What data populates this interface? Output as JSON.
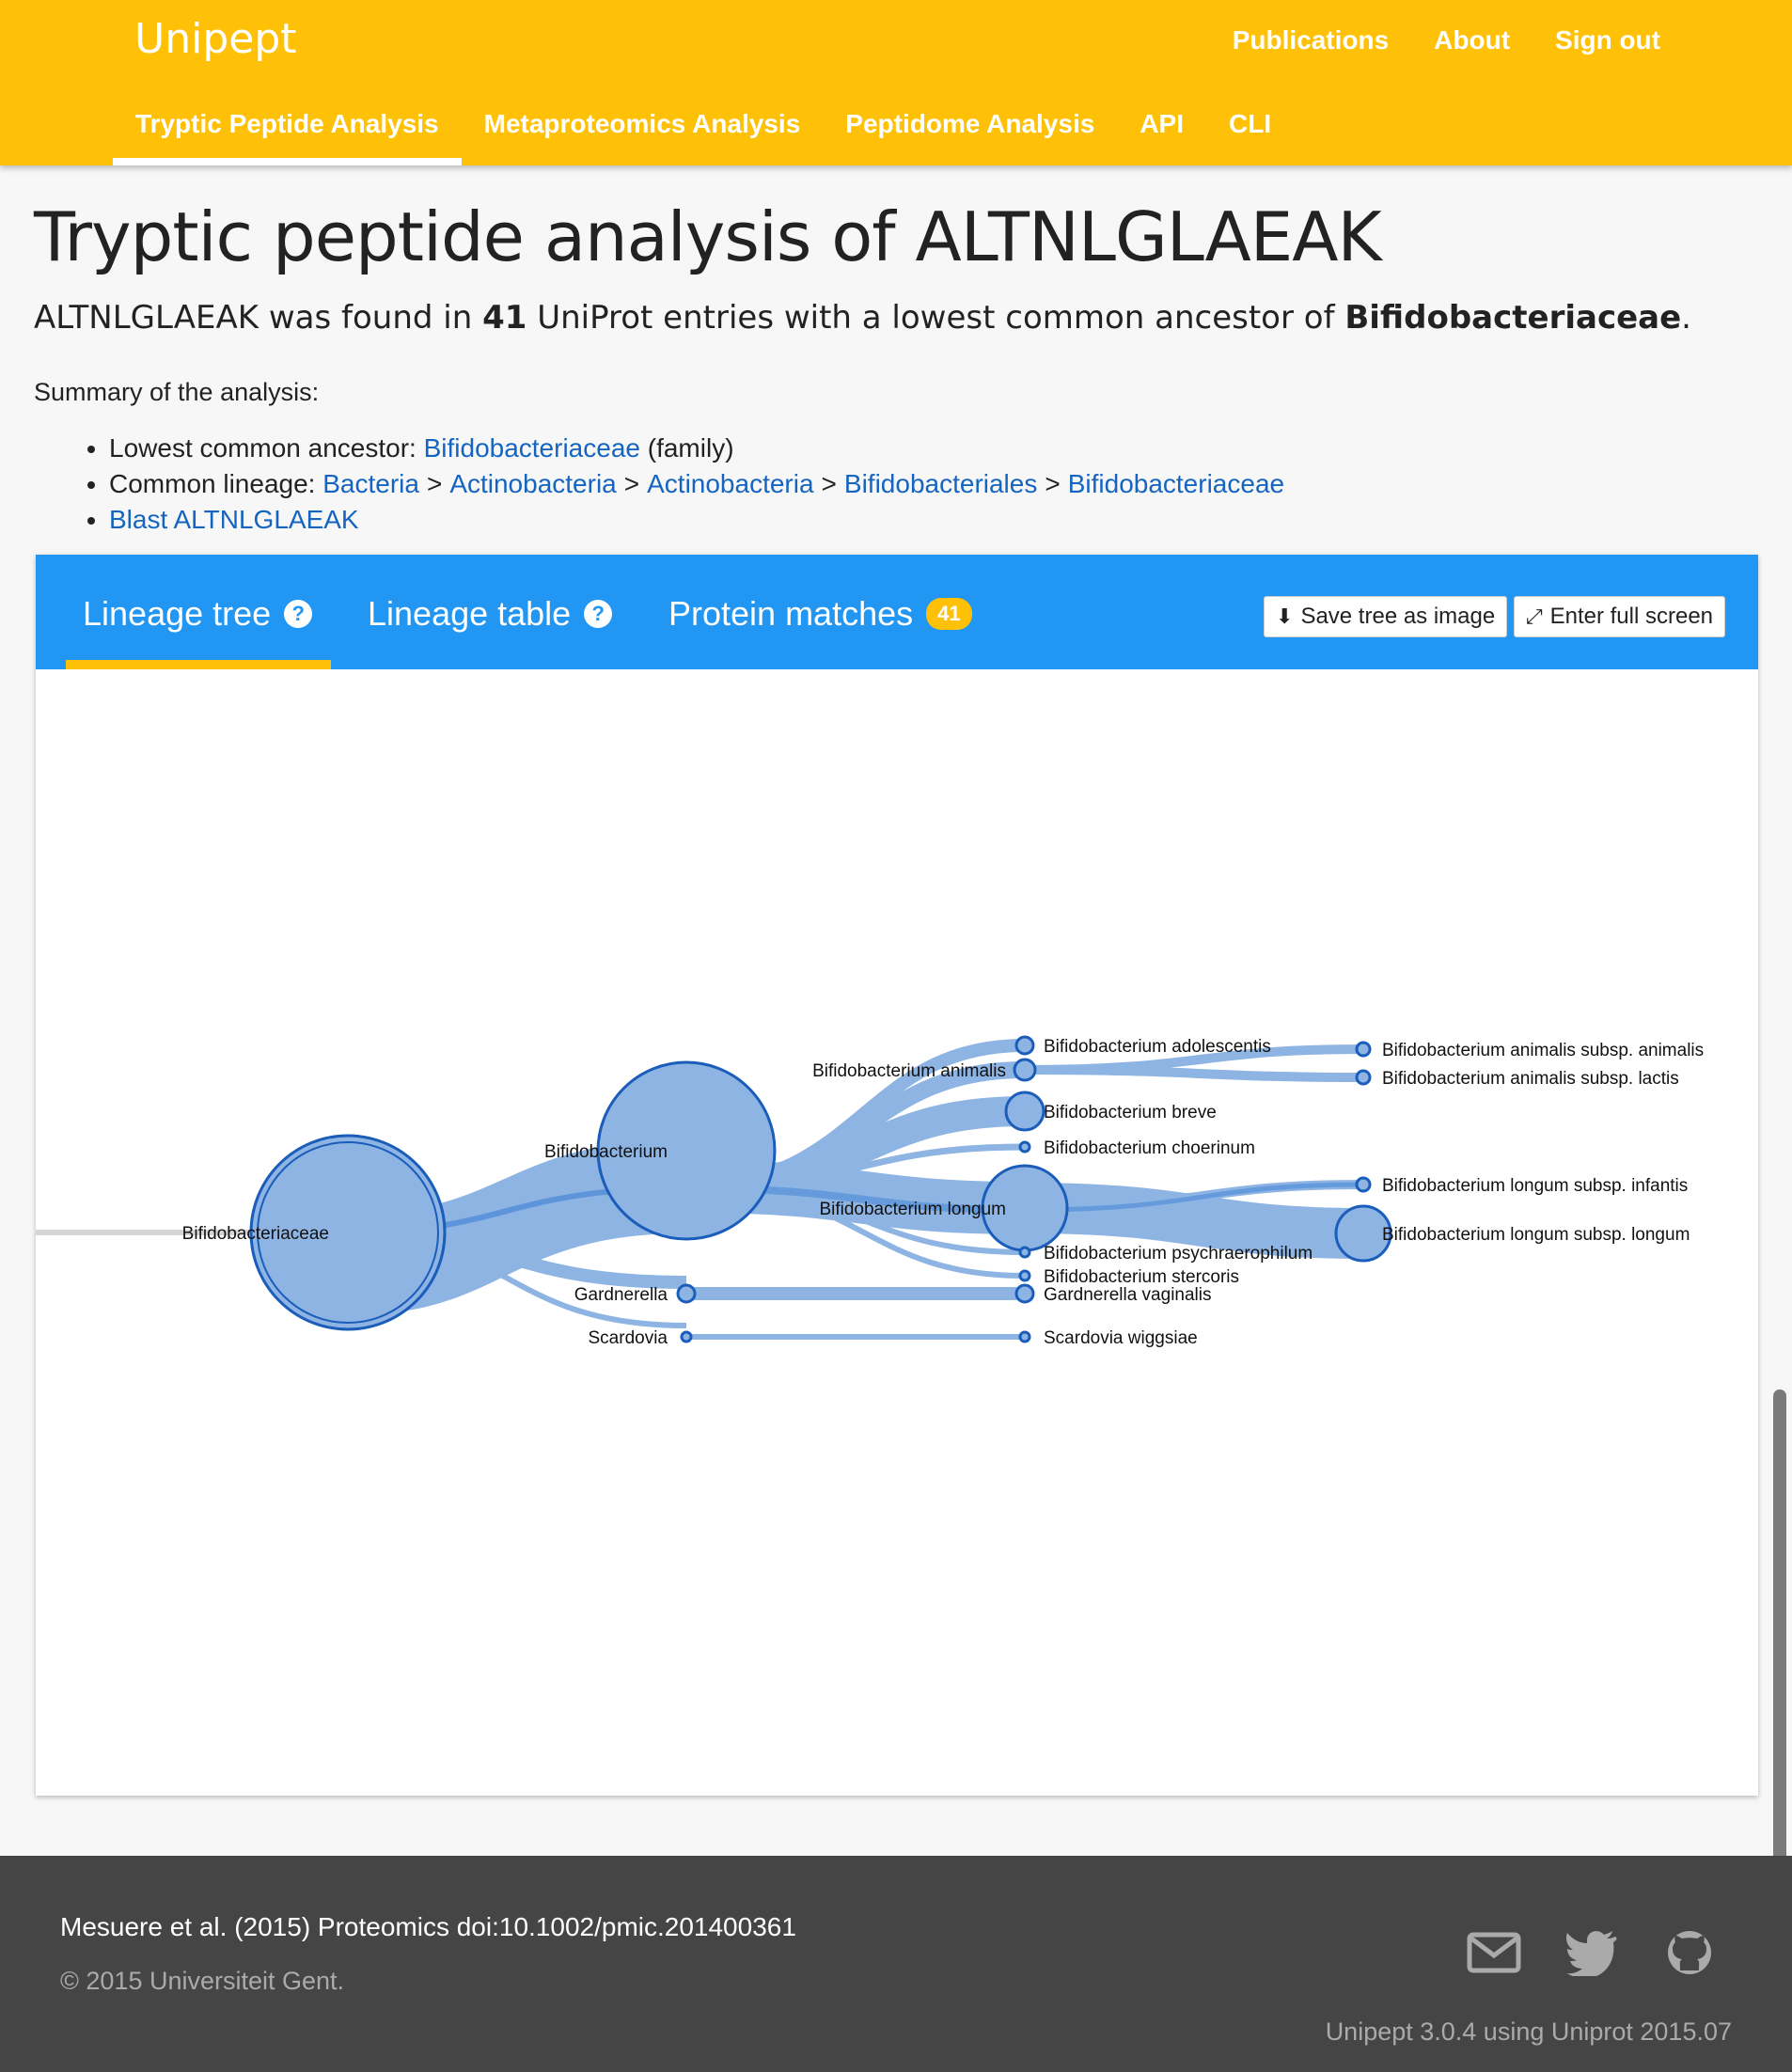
{
  "header": {
    "brand": "Unipept",
    "top_links": [
      "Publications",
      "About",
      "Sign out"
    ],
    "tabs": [
      "Tryptic Peptide Analysis",
      "Metaproteomics Analysis",
      "Peptidome Analysis",
      "API",
      "CLI"
    ],
    "active_tab": "Tryptic Peptide Analysis",
    "color": "#ffc107"
  },
  "page": {
    "title": "Tryptic peptide analysis of ALTNLGLAEAK",
    "intro": {
      "peptide": "ALTNLGLAEAK",
      "found_in": " was found in ",
      "count": "41",
      "middle": " UniProt entries with a lowest common ancestor of ",
      "lca": "Bifidobacteriaceae",
      "end": "."
    },
    "summary_label": "Summary of the analysis:",
    "summary": {
      "lca_label": "Lowest common ancestor: ",
      "lca_link": "Bifidobacteriaceae",
      "lca_rank": " (family)",
      "lineage_label": "Common lineage: ",
      "lineage": [
        "Bacteria",
        "Actinobacteria",
        "Actinobacteria",
        "Bifidobacteriales",
        "Bifidobacteriaceae"
      ],
      "lineage_separator": ">",
      "blast_link": "Blast ALTNLGLAEAK"
    }
  },
  "card": {
    "color": "#2196f3",
    "tabs": {
      "lineage_tree": "Lineage tree",
      "lineage_table": "Lineage table",
      "protein_matches": "Protein matches",
      "protein_count": "41"
    },
    "buttons": {
      "save_image": "Save tree as image",
      "full_screen": "Enter full screen"
    }
  },
  "tree": {
    "root": "Bifidobacteriaceae",
    "genera": [
      "Bifidobacterium",
      "Gardnerella",
      "Scardovia"
    ],
    "species": [
      "Bifidobacterium adolescentis",
      "Bifidobacterium animalis",
      "Bifidobacterium breve",
      "Bifidobacterium choerinum",
      "Bifidobacterium longum",
      "Bifidobacterium psychraerophilum",
      "Bifidobacterium stercoris",
      "Gardnerella vaginalis",
      "Scardovia wiggsiae"
    ],
    "subspecies": [
      "Bifidobacterium animalis subsp. animalis",
      "Bifidobacterium animalis subsp. lactis",
      "Bifidobacterium longum subsp. infantis",
      "Bifidobacterium longum subsp. longum"
    ],
    "link_color": "#8db4e2",
    "node_stroke": "#1a5dbb"
  },
  "footer": {
    "citation": "Mesuere et al. (2015) Proteomics doi:10.1002/pmic.201400361",
    "copyright": "© 2015 Universiteit Gent.",
    "icons": [
      "mail-icon",
      "twitter-icon",
      "github-icon"
    ],
    "version": "Unipept 3.0.4 using Uniprot 2015.07"
  }
}
